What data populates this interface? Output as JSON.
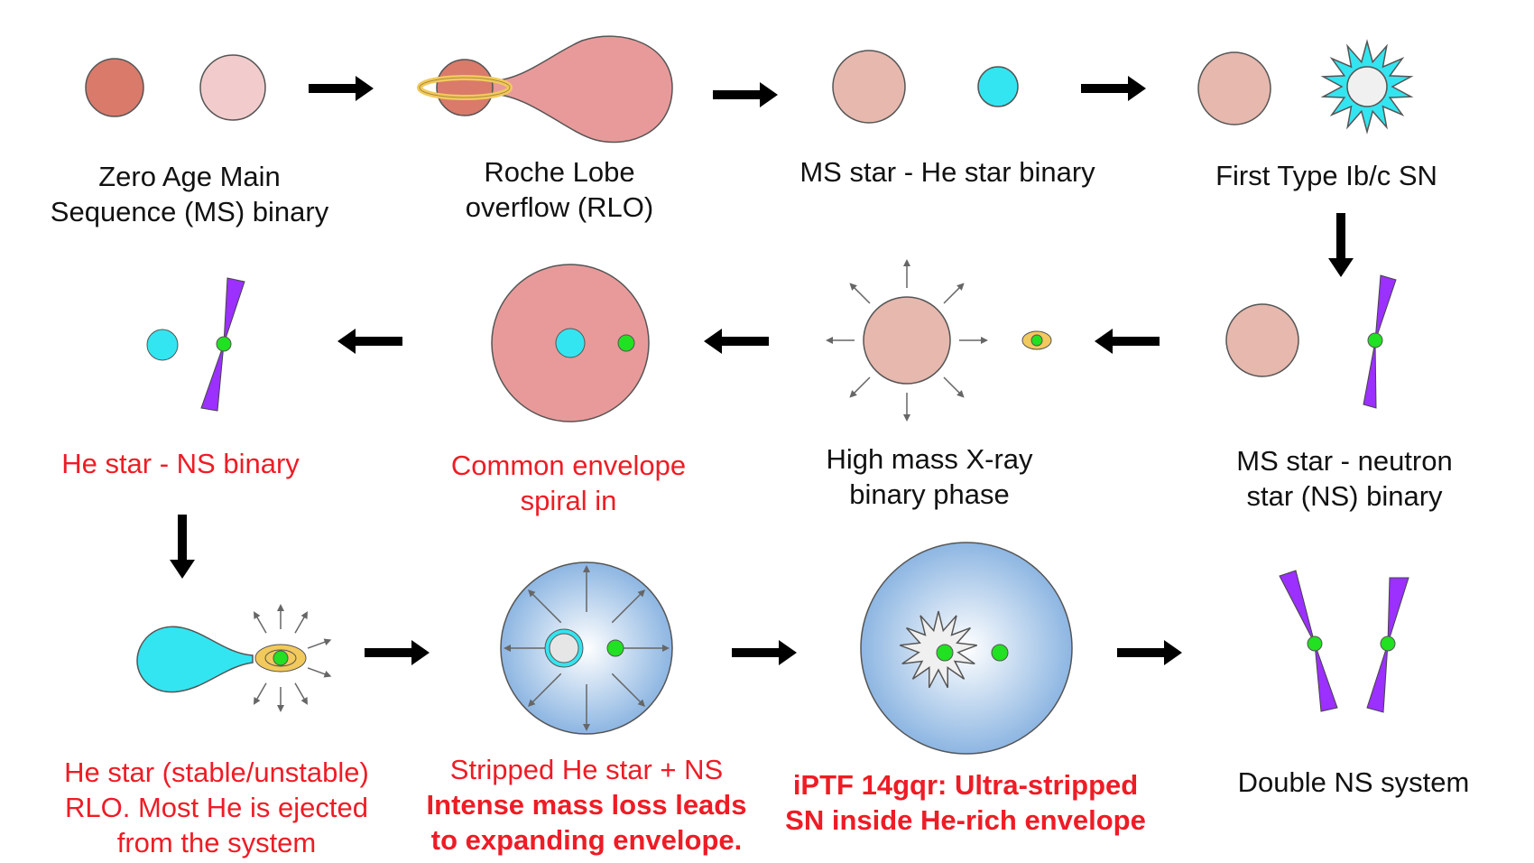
{
  "stages": {
    "zams": {
      "lines": [
        "Zero Age Main",
        "Sequence (MS) binary"
      ]
    },
    "rlo": {
      "lines": [
        "Roche Lobe",
        "overflow (RLO)"
      ]
    },
    "ms_he": {
      "lines": [
        "MS star - He star binary"
      ]
    },
    "first_sn": {
      "lines": [
        "First Type Ib/c SN"
      ]
    },
    "ms_ns": {
      "lines": [
        "MS star - neutron",
        "star (NS) binary"
      ]
    },
    "hmxb": {
      "lines": [
        "High mass X-ray",
        "binary phase"
      ]
    },
    "common_env": {
      "lines": [
        "Common envelope",
        "spiral in"
      ]
    },
    "he_ns": {
      "lines": [
        "He star - NS binary"
      ]
    },
    "he_rlo": {
      "lines": [
        "He star (stable/unstable)",
        "RLO. Most He is ejected",
        "from the system"
      ]
    },
    "stripped": {
      "line1": "Stripped He star + NS",
      "line2": "Intense mass loss leads",
      "line3": "to expanding envelope."
    },
    "iptf": {
      "lines": [
        "iPTF 14gqr: Ultra-stripped",
        "SN inside He-rich envelope"
      ]
    },
    "dns": {
      "lines": [
        "Double NS system"
      ]
    }
  },
  "colors": {
    "dark_star": "#d97a6b",
    "pale_star": "#f2cccc",
    "ms_star": "#e6b8ae",
    "envelope": "#e89a9a",
    "he_star": "#33e5f0",
    "neutron_star": "#22e022",
    "pulsar_beam": "#9b30ff",
    "accretion_ring": "#f2c95c",
    "blue_envelope": "#9dc2e6",
    "supernova_white": "#f0f0f0",
    "red_text": "#ee1c25"
  },
  "icons": [
    "arrow-right-icon",
    "arrow-left-icon",
    "arrow-down-icon",
    "pulsar-icon",
    "supernova-icon",
    "accretion-disk-icon",
    "wind-arrow-icon"
  ]
}
